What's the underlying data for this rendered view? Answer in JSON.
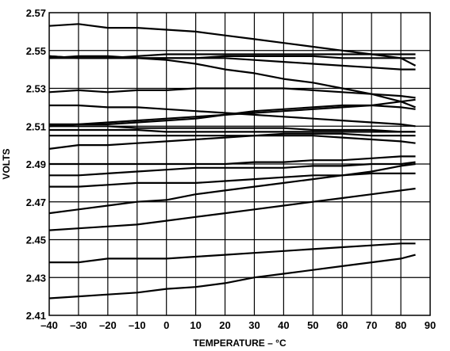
{
  "chart_data": {
    "type": "line",
    "xlabel": "TEMPERATURE – °C",
    "ylabel": "VOLTS",
    "xlim": [
      -40,
      90
    ],
    "ylim": [
      2.41,
      2.57
    ],
    "x_ticks": [
      "–40",
      "–30",
      "–20",
      "–10",
      "0",
      "10",
      "20",
      "30",
      "40",
      "50",
      "60",
      "70",
      "80",
      "90"
    ],
    "y_ticks": [
      "2.57",
      "2.55",
      "2.53",
      "2.51",
      "2.49",
      "2.47",
      "2.45",
      "2.43",
      "2.41"
    ],
    "grid": true,
    "legend": "none",
    "x": [
      -40,
      -30,
      -20,
      -10,
      0,
      10,
      20,
      30,
      40,
      50,
      60,
      70,
      80,
      85
    ],
    "series": [
      {
        "values": [
          2.563,
          2.564,
          2.562,
          2.562,
          2.561,
          2.56,
          2.558,
          2.556,
          2.554,
          2.552,
          2.55,
          2.548,
          2.546,
          2.542
        ]
      },
      {
        "values": [
          2.546,
          2.547,
          2.547,
          2.546,
          2.545,
          2.543,
          2.54,
          2.538,
          2.535,
          2.533,
          2.53,
          2.527,
          2.523,
          2.52
        ]
      },
      {
        "values": [
          2.547,
          2.546,
          2.546,
          2.546,
          2.546,
          2.546,
          2.546,
          2.545,
          2.544,
          2.543,
          2.542,
          2.541,
          2.54,
          2.54
        ]
      },
      {
        "values": [
          2.546,
          2.546,
          2.546,
          2.547,
          2.548,
          2.548,
          2.548,
          2.548,
          2.548,
          2.548,
          2.548,
          2.548,
          2.548,
          2.548
        ]
      },
      {
        "values": [
          2.547,
          2.546,
          2.546,
          2.546,
          2.546,
          2.546,
          2.547,
          2.547,
          2.547,
          2.547,
          2.546,
          2.546,
          2.546,
          2.546
        ]
      },
      {
        "values": [
          2.528,
          2.529,
          2.528,
          2.529,
          2.529,
          2.53,
          2.53,
          2.53,
          2.53,
          2.529,
          2.528,
          2.527,
          2.526,
          2.525
        ]
      },
      {
        "values": [
          2.521,
          2.521,
          2.52,
          2.52,
          2.519,
          2.518,
          2.517,
          2.516,
          2.515,
          2.514,
          2.513,
          2.512,
          2.511,
          2.51
        ]
      },
      {
        "values": [
          2.511,
          2.511,
          2.512,
          2.513,
          2.514,
          2.515,
          2.516,
          2.517,
          2.518,
          2.519,
          2.52,
          2.521,
          2.523,
          2.524
        ]
      },
      {
        "values": [
          2.51,
          2.511,
          2.511,
          2.512,
          2.513,
          2.514,
          2.516,
          2.518,
          2.519,
          2.52,
          2.521,
          2.521,
          2.52,
          2.519
        ]
      },
      {
        "values": [
          2.51,
          2.51,
          2.51,
          2.509,
          2.509,
          2.509,
          2.509,
          2.509,
          2.509,
          2.508,
          2.508,
          2.508,
          2.507,
          2.507
        ]
      },
      {
        "values": [
          2.508,
          2.508,
          2.508,
          2.508,
          2.507,
          2.507,
          2.507,
          2.507,
          2.507,
          2.507,
          2.507,
          2.507,
          2.507,
          2.507
        ]
      },
      {
        "values": [
          2.505,
          2.505,
          2.505,
          2.505,
          2.505,
          2.505,
          2.505,
          2.505,
          2.505,
          2.505,
          2.504,
          2.503,
          2.502,
          2.501
        ]
      },
      {
        "values": [
          2.498,
          2.5,
          2.5,
          2.501,
          2.502,
          2.503,
          2.504,
          2.505,
          2.506,
          2.506,
          2.506,
          2.505,
          2.505,
          2.505
        ]
      },
      {
        "values": [
          2.49,
          2.49,
          2.49,
          2.49,
          2.49,
          2.49,
          2.49,
          2.491,
          2.491,
          2.492,
          2.492,
          2.493,
          2.494,
          2.494
        ]
      },
      {
        "values": [
          2.484,
          2.484,
          2.485,
          2.486,
          2.487,
          2.488,
          2.488,
          2.488,
          2.488,
          2.489,
          2.489,
          2.49,
          2.49,
          2.491
        ]
      },
      {
        "values": [
          2.478,
          2.478,
          2.479,
          2.48,
          2.48,
          2.48,
          2.481,
          2.482,
          2.483,
          2.484,
          2.484,
          2.485,
          2.485,
          2.485
        ]
      },
      {
        "values": [
          2.464,
          2.466,
          2.468,
          2.47,
          2.471,
          2.474,
          2.476,
          2.478,
          2.48,
          2.482,
          2.484,
          2.486,
          2.489,
          2.49
        ]
      },
      {
        "values": [
          2.455,
          2.456,
          2.457,
          2.458,
          2.46,
          2.462,
          2.464,
          2.466,
          2.468,
          2.47,
          2.472,
          2.474,
          2.476,
          2.477
        ]
      },
      {
        "values": [
          2.438,
          2.438,
          2.44,
          2.44,
          2.44,
          2.441,
          2.442,
          2.443,
          2.444,
          2.445,
          2.446,
          2.447,
          2.448,
          2.448
        ]
      },
      {
        "values": [
          2.419,
          2.42,
          2.421,
          2.422,
          2.424,
          2.425,
          2.427,
          2.43,
          2.432,
          2.434,
          2.436,
          2.438,
          2.44,
          2.442
        ]
      }
    ]
  }
}
